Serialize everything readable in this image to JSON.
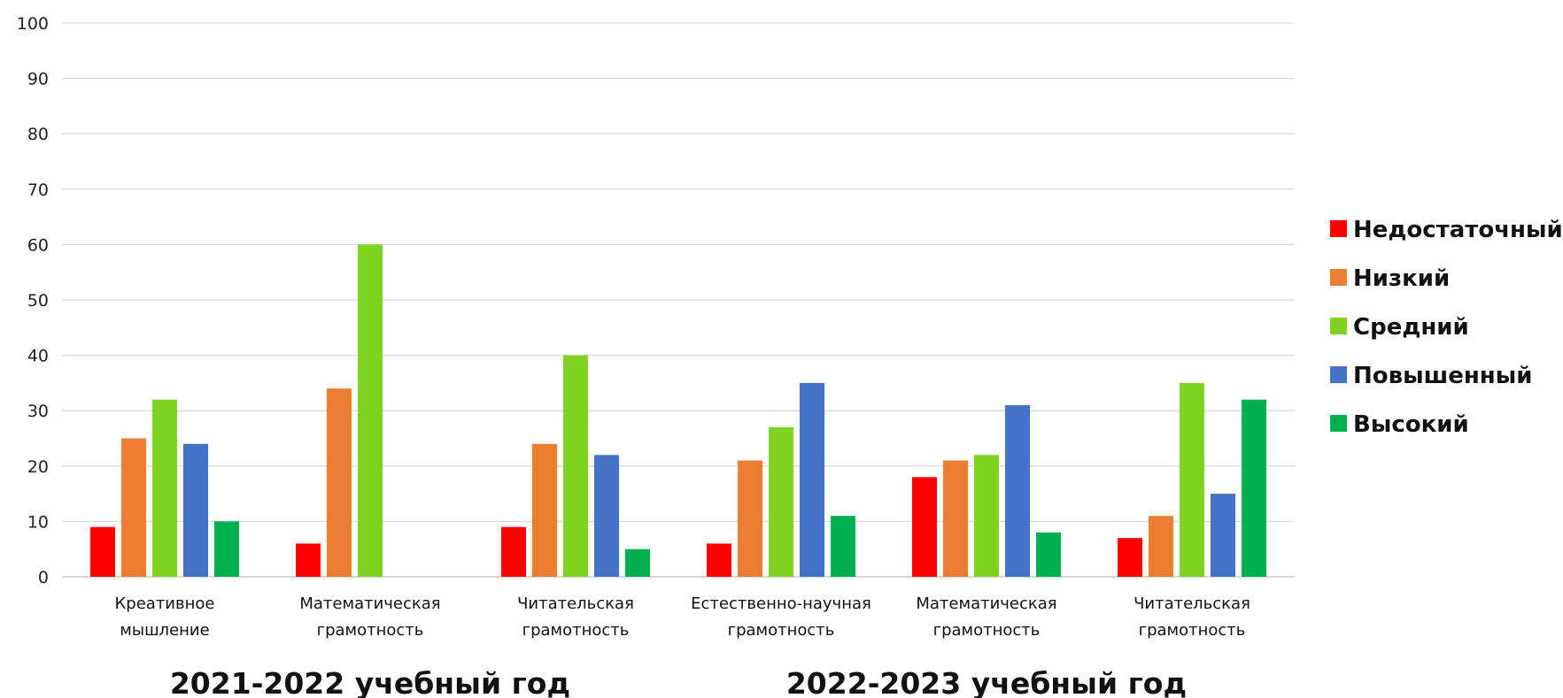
{
  "chart_data": {
    "type": "bar",
    "title": "",
    "xlabel": "",
    "ylabel": "",
    "ylim": [
      0,
      100
    ],
    "yticks": [
      0,
      10,
      20,
      30,
      40,
      50,
      60,
      70,
      80,
      90,
      100
    ],
    "grid": true,
    "legend_position": "right",
    "categories": [
      [
        "Креативное",
        "мышление"
      ],
      [
        "Математическая",
        "грамотность"
      ],
      [
        "Читательская",
        "грамотность"
      ],
      [
        "Естественно-научная",
        "грамотность"
      ],
      [
        "Математическая",
        "грамотность"
      ],
      [
        "Читательская",
        "грамотность"
      ]
    ],
    "groups": [
      {
        "label": "2021-2022 учебный год",
        "categories": [
          0,
          1,
          2
        ]
      },
      {
        "label": "2022-2023 учебный год",
        "categories": [
          3,
          4,
          5
        ]
      }
    ],
    "series": [
      {
        "name": "Недостаточный",
        "color": "#ff0000",
        "values": [
          9,
          6,
          9,
          6,
          18,
          7
        ]
      },
      {
        "name": "Низкий",
        "color": "#ed7d31",
        "values": [
          25,
          34,
          24,
          21,
          21,
          11
        ]
      },
      {
        "name": "Средний",
        "color": "#7ed321",
        "values": [
          32,
          60,
          40,
          27,
          22,
          35
        ]
      },
      {
        "name": "Повышенный",
        "color": "#4472c4",
        "values": [
          24,
          0,
          22,
          35,
          31,
          15
        ]
      },
      {
        "name": "Высокий",
        "color": "#00b050",
        "values": [
          10,
          0,
          5,
          11,
          8,
          32
        ]
      }
    ]
  }
}
